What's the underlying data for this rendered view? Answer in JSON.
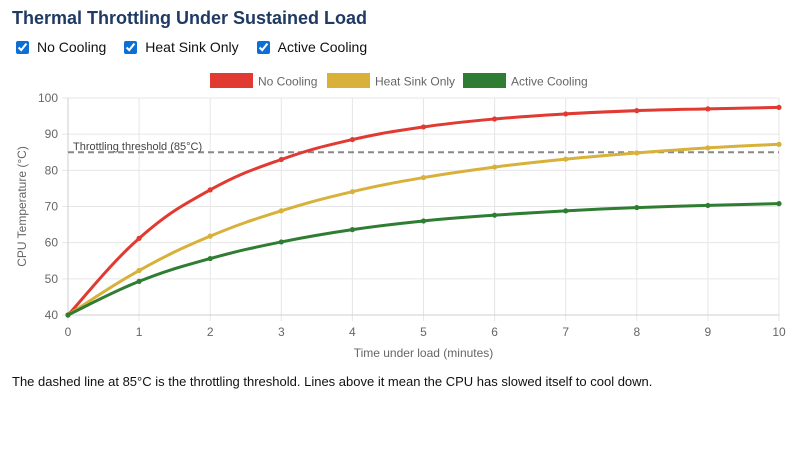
{
  "page": {
    "title": "Thermal Throttling Under Sustained Load",
    "note": "The dashed line at 85°C is the throttling threshold. Lines above it mean the CPU has slowed itself to cool down."
  },
  "toggles": [
    {
      "label": "No Cooling",
      "checked": true
    },
    {
      "label": "Heat Sink Only",
      "checked": true
    },
    {
      "label": "Active Cooling",
      "checked": true
    }
  ],
  "chart_data": {
    "type": "line",
    "title": "",
    "xlabel": "Time under load (minutes)",
    "ylabel": "CPU Temperature (°C)",
    "x": [
      0,
      1,
      2,
      3,
      4,
      5,
      6,
      7,
      8,
      9,
      10
    ],
    "xlim": [
      0,
      10
    ],
    "ylim": [
      40,
      100
    ],
    "yticks": [
      40,
      50,
      60,
      70,
      80,
      90,
      100
    ],
    "grid": true,
    "legend_position": "top-center",
    "series": [
      {
        "name": "No Cooling",
        "color": "#e03a32",
        "values": [
          40,
          61.2,
          74.6,
          83.0,
          88.5,
          92.0,
          94.2,
          95.6,
          96.5,
          97.0,
          97.4
        ]
      },
      {
        "name": "Heat Sink Only",
        "color": "#d8b13a",
        "values": [
          40,
          52.3,
          61.8,
          68.8,
          74.1,
          78.0,
          80.9,
          83.1,
          84.8,
          86.2,
          87.2
        ]
      },
      {
        "name": "Active Cooling",
        "color": "#2e7d32",
        "values": [
          40,
          49.3,
          55.6,
          60.2,
          63.6,
          66.0,
          67.6,
          68.8,
          69.7,
          70.3,
          70.8
        ]
      }
    ],
    "threshold": {
      "value": 85,
      "label": "Throttling threshold (85°C)",
      "color": "#888888"
    }
  }
}
